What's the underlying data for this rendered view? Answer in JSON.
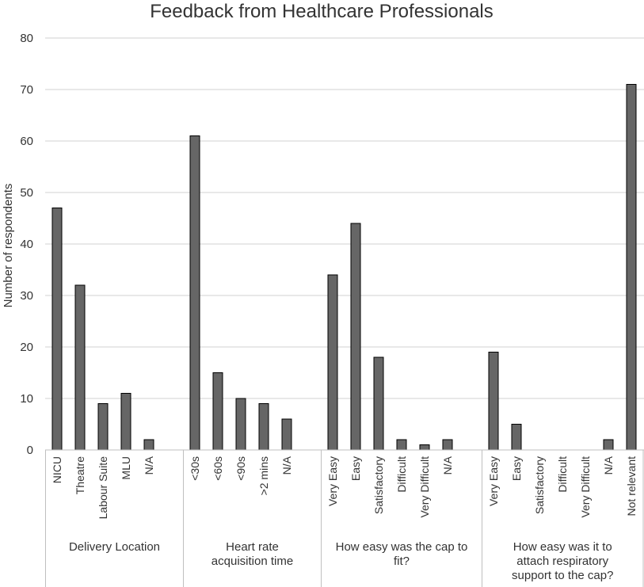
{
  "chart_data": {
    "type": "bar",
    "title": "Feedback from Healthcare Professionals",
    "ylabel": "Number of respondents",
    "xlabel": "",
    "ylim": [
      0,
      80
    ],
    "yticks": [
      0,
      10,
      20,
      30,
      40,
      50,
      60,
      70,
      80
    ],
    "grid": true,
    "legend": "none",
    "bar_color": "#666666",
    "groups": [
      {
        "label": "Delivery Location",
        "categories": [
          "NICU",
          "Theatre",
          "Labour Suite",
          "MLU",
          "N/A"
        ],
        "values": [
          47,
          32,
          9,
          11,
          2
        ]
      },
      {
        "label": "Heart rate acquisition time",
        "categories": [
          "<30s",
          "<60s",
          "<90s",
          ">2 mins",
          "N/A"
        ],
        "values": [
          61,
          15,
          10,
          9,
          6
        ]
      },
      {
        "label": "How easy was the cap to fit?",
        "categories": [
          "Very Easy",
          "Easy",
          "Satisfactory",
          "Difficult",
          "Very Difficult",
          "N/A"
        ],
        "values": [
          34,
          44,
          18,
          2,
          1,
          2
        ]
      },
      {
        "label": "How easy was it to attach respiratory support to the cap?",
        "categories": [
          "Very Easy",
          "Easy",
          "Satisfactory",
          "Difficult",
          "Very Difficult",
          "N/A",
          "Not relevant"
        ],
        "values": [
          19,
          5,
          0,
          0,
          0,
          2,
          71
        ]
      }
    ]
  }
}
